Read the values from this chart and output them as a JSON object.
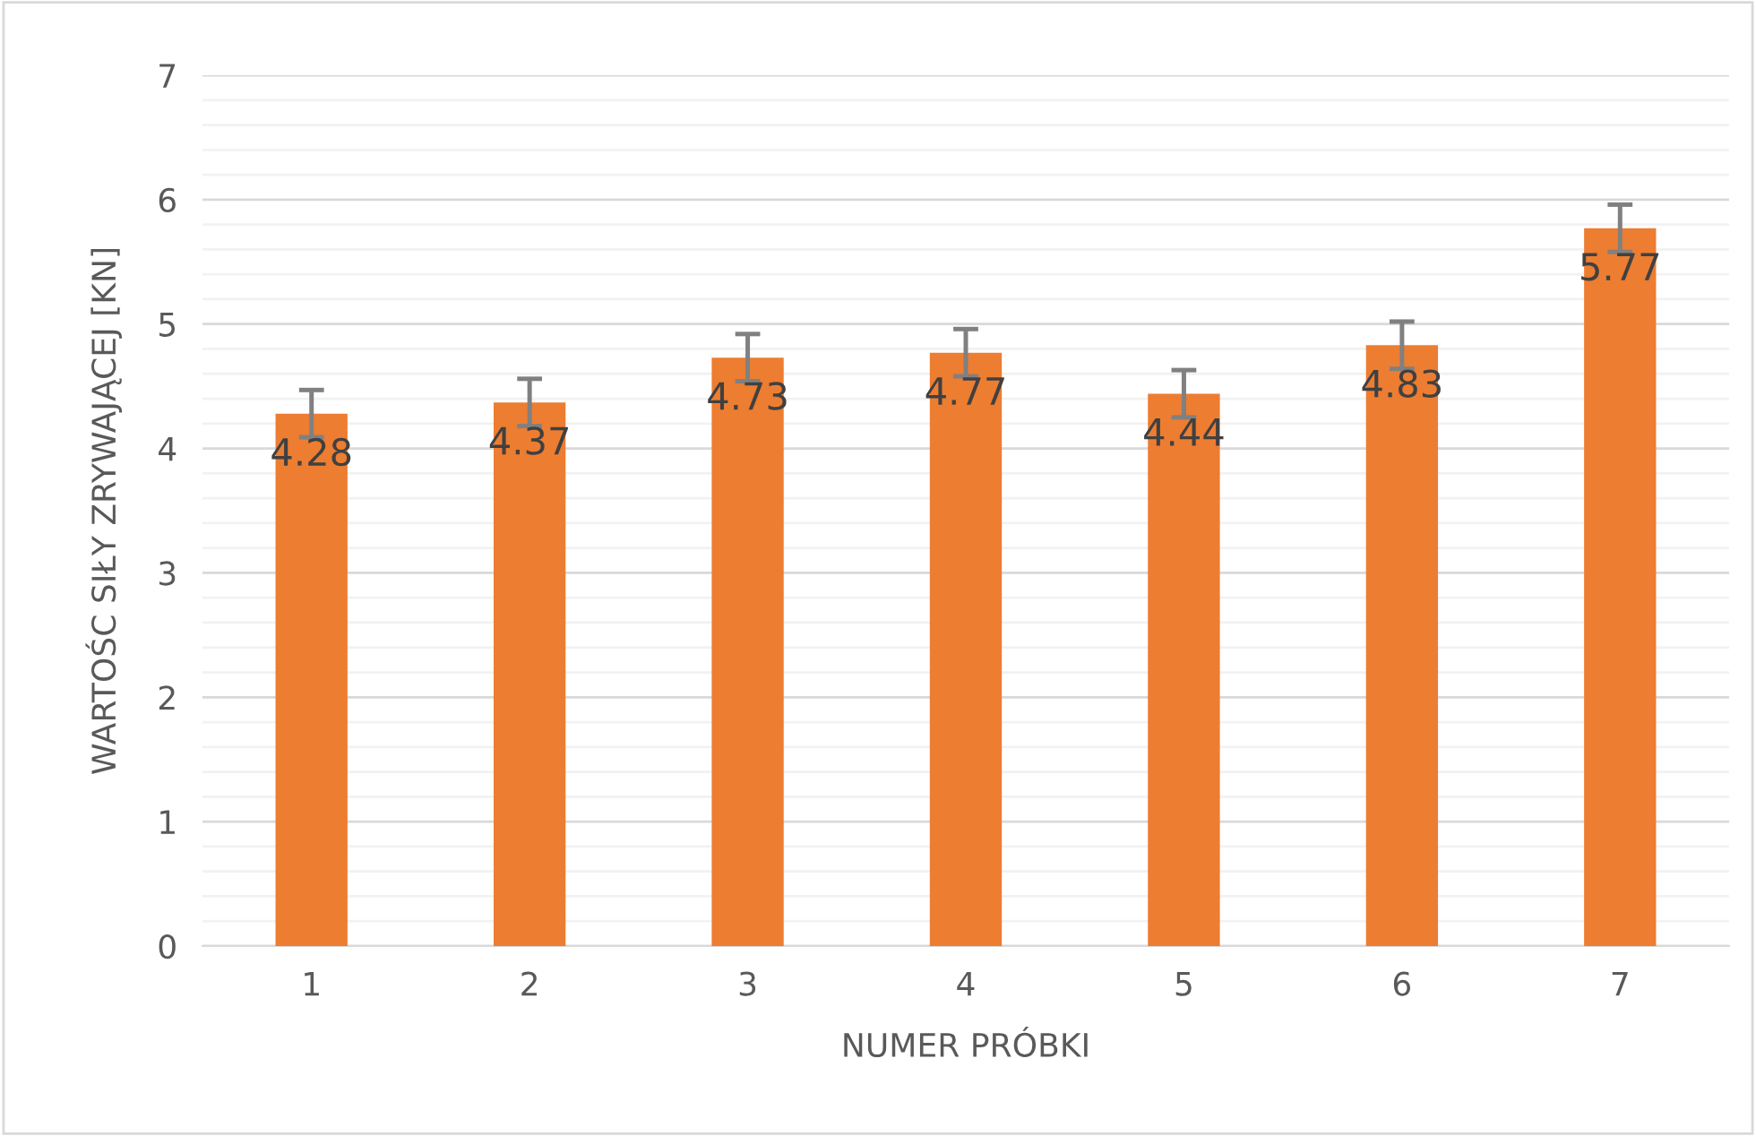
{
  "chart_data": {
    "type": "bar",
    "xlabel": "NUMER PRÓBKI",
    "ylabel": "WARTOŚC SIŁY ZRYWAJĄCEJ [KN]",
    "categories": [
      "1",
      "2",
      "3",
      "4",
      "5",
      "6",
      "7"
    ],
    "values": [
      4.28,
      4.37,
      4.73,
      4.77,
      4.44,
      4.83,
      5.77
    ],
    "errors": [
      0.19,
      0.19,
      0.19,
      0.19,
      0.19,
      0.19,
      0.19
    ],
    "color": "#ed7d31",
    "data_labels": true,
    "ylim": [
      0,
      7
    ],
    "yticks": [
      0,
      1,
      2,
      3,
      4,
      5,
      6,
      7
    ],
    "grid": "y"
  }
}
